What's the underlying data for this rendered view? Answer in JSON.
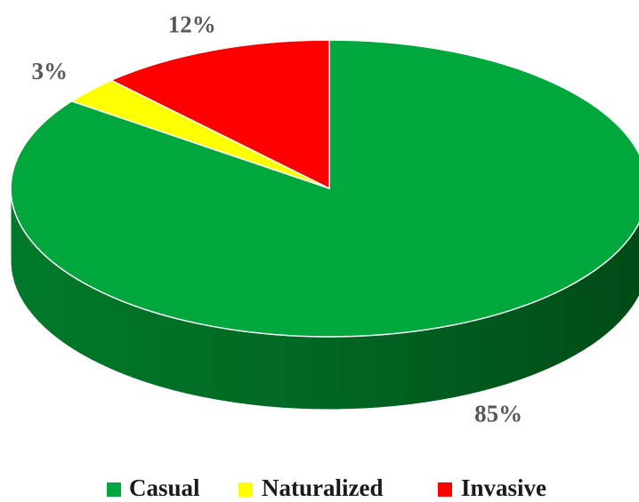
{
  "chart_data": {
    "type": "pie",
    "categories": [
      "Casual",
      "Naturalized",
      "Invasive"
    ],
    "values": [
      85,
      3,
      12
    ],
    "value_labels": [
      "85%",
      "3%",
      "12%"
    ],
    "colors": [
      "#00a73c",
      "#ffff00",
      "#ff0000"
    ],
    "legend": "bottom"
  }
}
